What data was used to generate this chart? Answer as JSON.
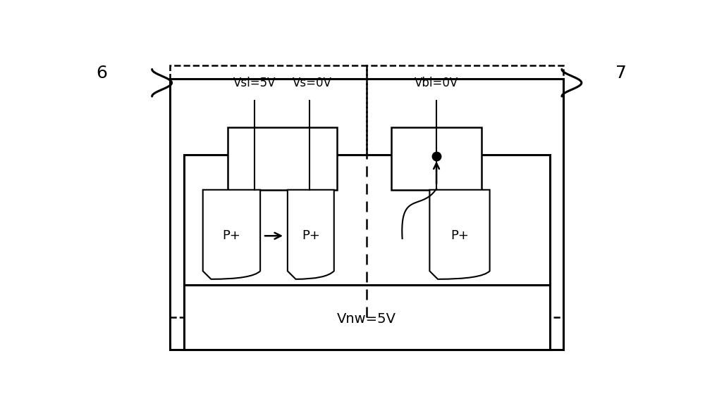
{
  "bg_color": "#ffffff",
  "fig_width": 10.0,
  "fig_height": 5.8,
  "label_6": "6",
  "label_7": "7",
  "label_vsl": "Vsl=5V",
  "label_vs": "Vs=0V",
  "label_vbl": "Vbl=0V",
  "label_vnw": "Vnw=5V",
  "label_p1": "P+",
  "label_p2": "P+",
  "label_p3": "P+"
}
